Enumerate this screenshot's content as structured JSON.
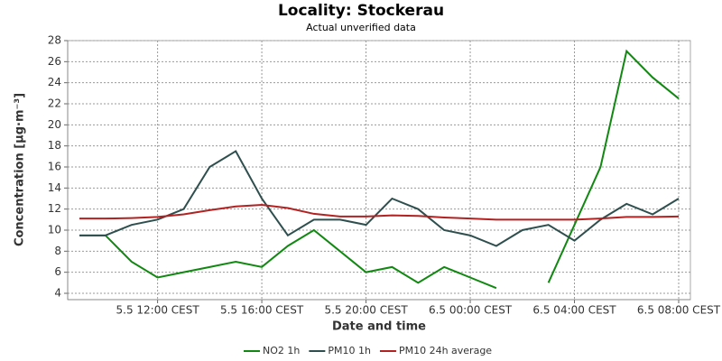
{
  "chart_data": {
    "type": "line",
    "title": "Locality: Stockerau",
    "subtitle": "Actual unverified data",
    "y_label": "Concentration [µg·m⁻³]",
    "x_label": "Date and time",
    "categories": [
      null,
      null,
      null,
      "5.5 12:00 CEST",
      null,
      null,
      null,
      "5.5 16:00 CEST",
      null,
      null,
      null,
      "5.5 20:00 CEST",
      null,
      null,
      null,
      "6.5 00:00 CEST",
      null,
      null,
      null,
      "6.5 04:00 CEST",
      null,
      null,
      null,
      "6.5 08:00 CEST"
    ],
    "series": [
      {
        "name": "NO2 1h",
        "color": "#118811",
        "values": [
          9.5,
          9.5,
          7,
          5.5,
          6,
          6.5,
          7,
          6.5,
          8.5,
          10,
          8,
          6,
          6.5,
          5,
          6.5,
          5.5,
          4.5,
          null,
          5,
          10.5,
          16,
          27,
          24.5,
          22.5
        ]
      },
      {
        "name": "PM10 1h",
        "color": "#2f4f4f",
        "values": [
          9.5,
          9.5,
          10.5,
          11,
          12,
          16,
          17.5,
          13,
          9.5,
          11,
          11,
          10.5,
          13,
          12,
          10,
          9.5,
          8.5,
          10,
          10.5,
          9,
          11,
          12.5,
          11.5,
          13
        ]
      },
      {
        "name": "PM10 24h average",
        "color": "#b22222",
        "values": [
          11.1,
          11.1,
          11.15,
          11.25,
          11.5,
          11.9,
          12.25,
          12.4,
          12.1,
          11.55,
          11.3,
          11.3,
          11.4,
          11.35,
          11.2,
          11.1,
          11.0,
          11.0,
          11.0,
          11.0,
          11.1,
          11.25,
          11.25,
          11.3
        ]
      }
    ],
    "ylim": [
      3.4,
      28
    ],
    "yticks": [
      4,
      6,
      8,
      10,
      12,
      14,
      16,
      18,
      20,
      22,
      24,
      26,
      28
    ],
    "grid": true,
    "legend": "bottom"
  }
}
